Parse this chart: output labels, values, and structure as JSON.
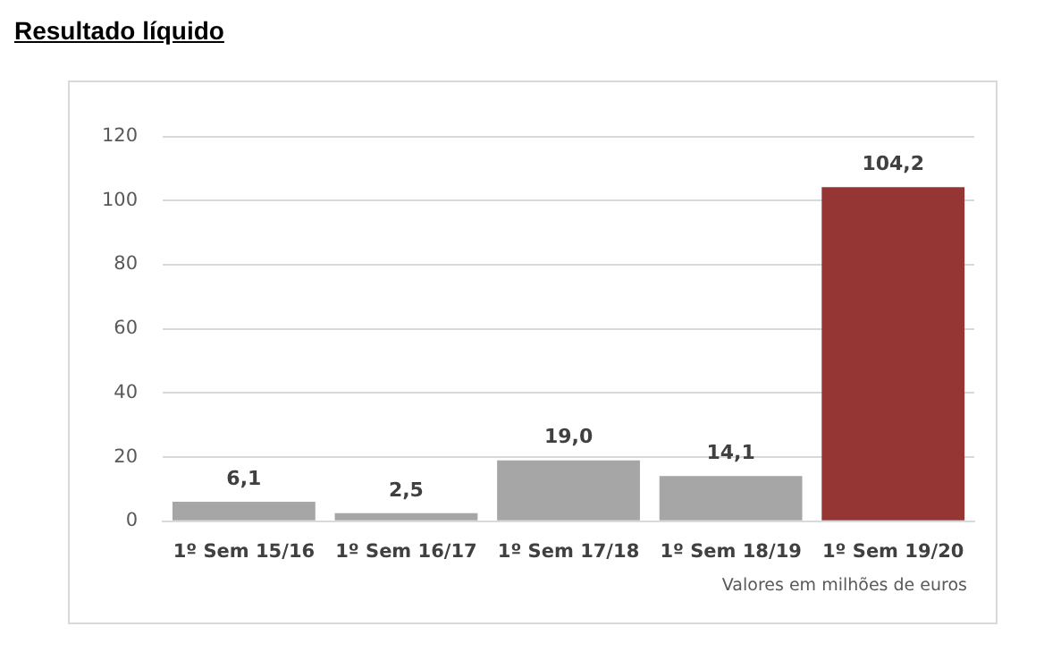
{
  "chart_data": {
    "type": "bar",
    "title": "Resultado líquido",
    "categories": [
      "1º Sem 15/16",
      "1º Sem 16/17",
      "1º Sem 17/18",
      "1º Sem 18/19",
      "1º Sem 19/20"
    ],
    "values": [
      6.1,
      2.5,
      19.0,
      14.1,
      104.2
    ],
    "colors": [
      "#a6a6a6",
      "#a6a6a6",
      "#a6a6a6",
      "#a6a6a6",
      "#963634"
    ],
    "value_labels": [
      "6,1",
      "2,5",
      "19,0",
      "14,1",
      "104,2"
    ],
    "ylim": [
      0,
      120
    ],
    "yticks": [
      0,
      20,
      40,
      60,
      80,
      100,
      120
    ],
    "grid": "y",
    "annotations": [
      "Valores em milhões de euros"
    ]
  }
}
